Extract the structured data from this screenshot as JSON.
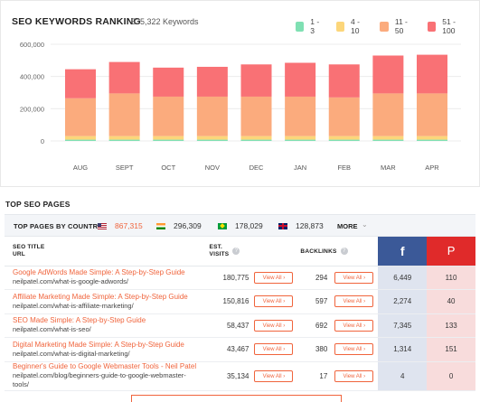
{
  "ranking": {
    "title": "SEO KEYWORDS RANKING",
    "keywords": "535,322 Keywords",
    "legend": [
      {
        "label": "1 - 3",
        "color": "#7fe0b3"
      },
      {
        "label": "4 - 10",
        "color": "#fcd67a"
      },
      {
        "label": "11 - 50",
        "color": "#fbab7d"
      },
      {
        "label": "51 - 100",
        "color": "#f97175"
      }
    ]
  },
  "chart_data": {
    "type": "bar",
    "stacked": true,
    "categories": [
      "AUG",
      "SEPT",
      "OCT",
      "NOV",
      "DEC",
      "JAN",
      "FEB",
      "MAR",
      "APR"
    ],
    "series": [
      {
        "name": "1 - 3",
        "color": "#7fe0b3",
        "values": [
          8000,
          8000,
          8000,
          8000,
          8000,
          8000,
          8000,
          8000,
          8000
        ]
      },
      {
        "name": "4 - 10",
        "color": "#fcd67a",
        "values": [
          22000,
          22000,
          22000,
          22000,
          22000,
          22000,
          22000,
          22000,
          22000
        ]
      },
      {
        "name": "11 - 50",
        "color": "#fbab7d",
        "values": [
          235000,
          265000,
          245000,
          245000,
          245000,
          245000,
          240000,
          265000,
          265000
        ]
      },
      {
        "name": "51 - 100",
        "color": "#f97175",
        "values": [
          180000,
          195000,
          180000,
          185000,
          200000,
          210000,
          205000,
          235000,
          240000
        ]
      }
    ],
    "yticks": [
      "600,000",
      "400,000",
      "200,000",
      "0"
    ],
    "ylim": [
      0,
      600000
    ],
    "grid": true
  },
  "top_pages": {
    "section_title": "TOP SEO PAGES",
    "bar_label": "TOP PAGES BY COUNTRY",
    "countries": [
      {
        "flag": "us",
        "value": "867,315",
        "active": true
      },
      {
        "flag": "in",
        "value": "296,309",
        "active": false
      },
      {
        "flag": "br",
        "value": "178,029",
        "active": false
      },
      {
        "flag": "gb",
        "value": "128,873",
        "active": false
      }
    ],
    "more_label": "MORE",
    "headers": {
      "title_url_1": "SEO TITLE",
      "title_url_2": "URL",
      "visits_1": "EST.",
      "visits_2": "VISITS",
      "backlinks": "BACKLINKS",
      "facebook_icon": "f",
      "pinterest_icon": "P"
    },
    "view_all_label": "View All",
    "rows": [
      {
        "title": "Google AdWords Made Simple: A Step-by-Step Guide",
        "url": "neilpatel.com/what-is-google-adwords/",
        "visits": "180,775",
        "backlinks": "294",
        "facebook": "6,449",
        "pinterest": "110"
      },
      {
        "title": "Affiliate Marketing Made Simple: A Step-by-Step Guide",
        "url": "neilpatel.com/what-is-affiliate-marketing/",
        "visits": "150,816",
        "backlinks": "597",
        "facebook": "2,274",
        "pinterest": "40"
      },
      {
        "title": "SEO Made Simple: A Step-by-Step Guide",
        "url": "neilpatel.com/what-is-seo/",
        "visits": "58,437",
        "backlinks": "692",
        "facebook": "7,345",
        "pinterest": "133"
      },
      {
        "title": "Digital Marketing Made Simple: A Step-by-Step Guide",
        "url": "neilpatel.com/what-is-digital-marketing/",
        "visits": "43,467",
        "backlinks": "380",
        "facebook": "1,314",
        "pinterest": "151"
      },
      {
        "title": "Beginner's Guide to Google Webmaster Tools - Neil Patel",
        "url": "neilpatel.com/blog/beginners-guide-to-google-webmaster-tools/",
        "visits": "35,134",
        "backlinks": "17",
        "facebook": "4",
        "pinterest": "0"
      }
    ]
  }
}
